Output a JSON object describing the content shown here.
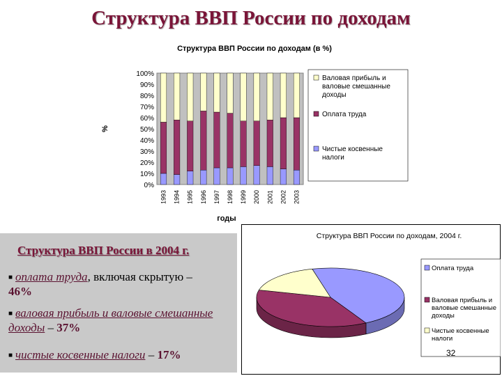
{
  "slide": {
    "title": "Структура ВВП России по доходам",
    "page_number": "32"
  },
  "summary_panel": {
    "title": "Структура ВВП России в 2004 г.",
    "bullets": [
      {
        "label": "оплата труда",
        "rest": ", включая скрытую –",
        "value": "46%"
      },
      {
        "label": "валовая прибыль и валовые смешанные доходы",
        "rest": " – ",
        "value": "37%"
      },
      {
        "label": "чистые косвенные налоги",
        "rest": " – ",
        "value": "17%"
      }
    ]
  },
  "chart_data": [
    {
      "type": "bar",
      "stacked": true,
      "title": "Структура ВВП России по доходам (в %)",
      "xlabel": "годы",
      "ylabel": "%",
      "ylim": [
        0,
        100
      ],
      "yticks": [
        "0%",
        "10%",
        "20%",
        "30%",
        "40%",
        "50%",
        "60%",
        "70%",
        "80%",
        "90%",
        "100%"
      ],
      "grid": false,
      "legend_position": "right",
      "categories": [
        "1993",
        "1994",
        "1995",
        "1996",
        "1997",
        "1998",
        "1999",
        "2000",
        "2001",
        "2002",
        "2003"
      ],
      "series": [
        {
          "name": "Чистые косвенные налоги",
          "color": "#9999ff",
          "values": [
            10,
            9,
            12,
            13,
            15,
            15,
            16,
            17,
            16,
            14,
            13
          ]
        },
        {
          "name": "Оплата труда",
          "color": "#993366",
          "values": [
            46,
            49,
            45,
            53,
            50,
            49,
            41,
            40,
            42,
            46,
            47
          ]
        },
        {
          "name": "Валовая прибыль и валовые смешанные доходы",
          "color": "#ffffcc",
          "values": [
            44,
            42,
            43,
            34,
            35,
            36,
            43,
            43,
            42,
            40,
            40
          ]
        }
      ]
    },
    {
      "type": "pie",
      "title": "Структура ВВП России по доходам, 2004 г.",
      "legend_position": "right",
      "slices": [
        {
          "label": "Оплата труда",
          "value": 46,
          "color": "#9999ff"
        },
        {
          "label": "Валовая прибыль и валовые смешанные доходы",
          "value": 37,
          "color": "#993366"
        },
        {
          "label": "Чистые косвенные налоги",
          "value": 17,
          "color": "#ffffcc"
        }
      ]
    }
  ]
}
